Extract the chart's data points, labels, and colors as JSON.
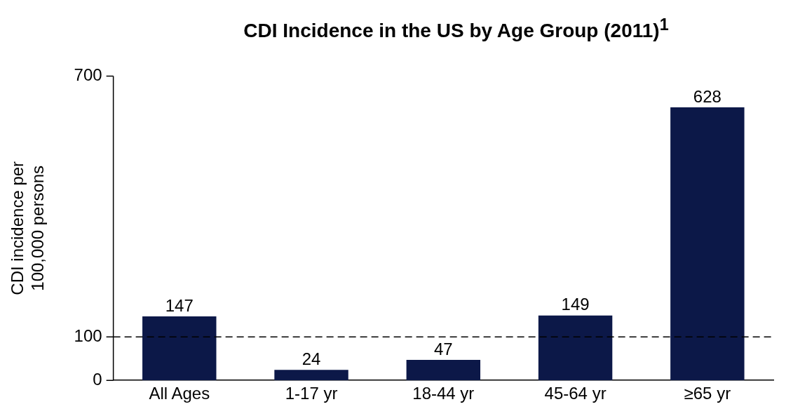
{
  "chart_data": {
    "type": "bar",
    "title": "CDI Incidence in the US by Age Group (2011)$^{1}$",
    "ylabel": "CDI incidence per 100,000 persons",
    "categories": [
      "All Ages",
      "1-17 yr",
      "18-44 yr",
      "45-64 yr",
      "≥65 yr"
    ],
    "values": [
      147,
      24,
      47,
      149,
      628
    ],
    "color": "#0c1848",
    "ylim": [
      0,
      700
    ],
    "yticks": [
      0,
      100,
      700
    ],
    "grid": false,
    "legend": false,
    "data_labels": true,
    "ref_lines": [
      {
        "axis": "y",
        "value": 100,
        "color": "#000000",
        "line_style": "dashed"
      }
    ]
  }
}
